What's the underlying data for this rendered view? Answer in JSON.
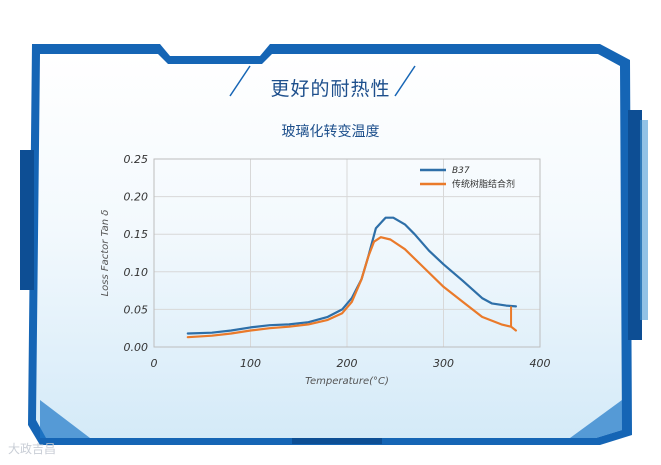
{
  "header": {
    "title": "更好的耐热性",
    "chart_title": "玻璃化转变温度"
  },
  "watermark": "大政吉昌",
  "colors": {
    "frame_blue": "#1565b5",
    "title_blue": "#1d4f8c",
    "series_b37": "#2e6fa8",
    "series_traditional": "#ea7a2a"
  },
  "chart_data": {
    "type": "line",
    "title": "玻璃化转变温度",
    "xlabel": "Temperature(°C)",
    "ylabel": "Loss Factor Tan δ",
    "xlim": [
      0,
      400
    ],
    "ylim": [
      0,
      0.25
    ],
    "x_ticks": [
      "0",
      "100",
      "200",
      "300",
      "400"
    ],
    "y_ticks": [
      "0.00",
      "0.05",
      "0.10",
      "0.15",
      "0.20",
      "0.25"
    ],
    "grid": true,
    "legend_position": "top-right",
    "series": [
      {
        "name": "B37",
        "color": "#2e6fa8",
        "points": [
          [
            35,
            0.018
          ],
          [
            60,
            0.019
          ],
          [
            80,
            0.022
          ],
          [
            100,
            0.026
          ],
          [
            120,
            0.029
          ],
          [
            140,
            0.03
          ],
          [
            160,
            0.033
          ],
          [
            180,
            0.04
          ],
          [
            195,
            0.05
          ],
          [
            205,
            0.065
          ],
          [
            215,
            0.09
          ],
          [
            222,
            0.12
          ],
          [
            230,
            0.158
          ],
          [
            240,
            0.172
          ],
          [
            248,
            0.172
          ],
          [
            260,
            0.163
          ],
          [
            270,
            0.15
          ],
          [
            285,
            0.128
          ],
          [
            300,
            0.11
          ],
          [
            320,
            0.088
          ],
          [
            340,
            0.065
          ],
          [
            350,
            0.058
          ],
          [
            365,
            0.055
          ],
          [
            375,
            0.054
          ]
        ]
      },
      {
        "name": "传统树脂结合剂",
        "color": "#ea7a2a",
        "points": [
          [
            35,
            0.013
          ],
          [
            60,
            0.015
          ],
          [
            80,
            0.018
          ],
          [
            100,
            0.022
          ],
          [
            120,
            0.025
          ],
          [
            140,
            0.027
          ],
          [
            160,
            0.03
          ],
          [
            180,
            0.036
          ],
          [
            195,
            0.045
          ],
          [
            205,
            0.06
          ],
          [
            215,
            0.09
          ],
          [
            222,
            0.12
          ],
          [
            228,
            0.14
          ],
          [
            235,
            0.146
          ],
          [
            245,
            0.143
          ],
          [
            260,
            0.13
          ],
          [
            280,
            0.105
          ],
          [
            300,
            0.08
          ],
          [
            320,
            0.06
          ],
          [
            340,
            0.04
          ],
          [
            360,
            0.03
          ],
          [
            370,
            0.027
          ],
          [
            375,
            0.022
          ]
        ]
      }
    ]
  }
}
